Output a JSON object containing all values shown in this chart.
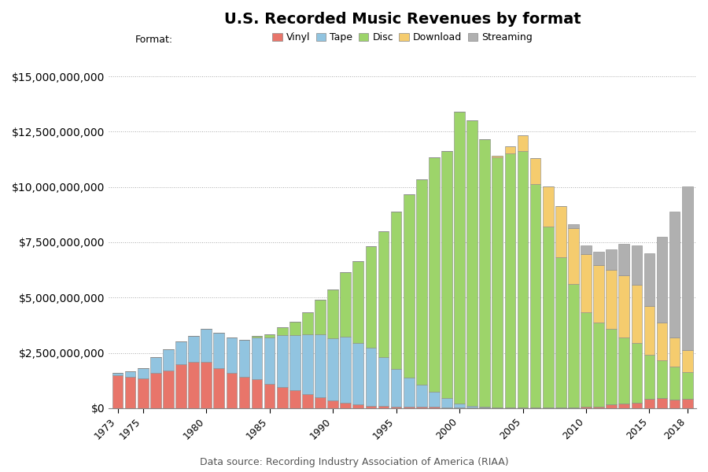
{
  "title": "U.S. Recorded Music Revenues by format",
  "subtitle": "Data source: Recording Industry Association of America (RIAA)",
  "legend_label": "Format:",
  "formats": [
    "Vinyl",
    "Tape",
    "Disc",
    "Download",
    "Streaming"
  ],
  "colors": [
    "#e8756a",
    "#91c4e0",
    "#9dd46a",
    "#f5cc6e",
    "#b0b0b0"
  ],
  "years": [
    1973,
    1974,
    1975,
    1976,
    1977,
    1978,
    1979,
    1980,
    1981,
    1982,
    1983,
    1984,
    1985,
    1986,
    1987,
    1988,
    1989,
    1990,
    1991,
    1992,
    1993,
    1994,
    1995,
    1996,
    1997,
    1998,
    1999,
    2000,
    2001,
    2002,
    2003,
    2004,
    2005,
    2006,
    2007,
    2008,
    2009,
    2010,
    2011,
    2012,
    2013,
    2014,
    2015,
    2016,
    2017,
    2018
  ],
  "vinyl": [
    1500000000,
    1400000000,
    1350000000,
    1600000000,
    1700000000,
    2000000000,
    2100000000,
    2100000000,
    1800000000,
    1600000000,
    1400000000,
    1300000000,
    1100000000,
    950000000,
    800000000,
    650000000,
    500000000,
    350000000,
    230000000,
    155000000,
    115000000,
    95000000,
    80000000,
    70000000,
    60000000,
    50000000,
    40000000,
    30000000,
    25000000,
    20000000,
    18000000,
    15000000,
    15000000,
    15000000,
    15000000,
    18000000,
    25000000,
    50000000,
    70000000,
    170000000,
    210000000,
    260000000,
    415000000,
    460000000,
    395000000,
    420000000
  ],
  "tape": [
    80000000,
    250000000,
    450000000,
    700000000,
    950000000,
    1000000000,
    1150000000,
    1500000000,
    1600000000,
    1600000000,
    1700000000,
    1900000000,
    2100000000,
    2350000000,
    2500000000,
    2700000000,
    2850000000,
    2800000000,
    3000000000,
    2800000000,
    2600000000,
    2200000000,
    1700000000,
    1300000000,
    1000000000,
    700000000,
    400000000,
    180000000,
    90000000,
    45000000,
    22000000,
    10000000,
    5000000,
    3000000,
    2000000,
    1000000,
    500000,
    200000,
    100000,
    100000,
    100000,
    100000,
    100000,
    100000,
    100000,
    100000
  ],
  "disc": [
    0,
    0,
    0,
    0,
    0,
    0,
    0,
    0,
    0,
    0,
    0,
    50000000,
    150000000,
    350000000,
    600000000,
    1000000000,
    1550000000,
    2200000000,
    2900000000,
    3700000000,
    4600000000,
    5700000000,
    7100000000,
    8300000000,
    9300000000,
    10600000000,
    11200000000,
    13200000000,
    12900000000,
    12100000000,
    11300000000,
    11500000000,
    11600000000,
    10100000000,
    8200000000,
    6800000000,
    5600000000,
    4300000000,
    3800000000,
    3400000000,
    3000000000,
    2700000000,
    2000000000,
    1700000000,
    1500000000,
    1200000000
  ],
  "download": [
    0,
    0,
    0,
    0,
    0,
    0,
    0,
    0,
    0,
    0,
    0,
    0,
    0,
    0,
    0,
    0,
    0,
    0,
    0,
    0,
    0,
    0,
    0,
    0,
    0,
    0,
    0,
    0,
    0,
    0,
    60000000,
    300000000,
    700000000,
    1200000000,
    1800000000,
    2300000000,
    2500000000,
    2600000000,
    2600000000,
    2700000000,
    2800000000,
    2600000000,
    2200000000,
    1700000000,
    1300000000,
    1000000000
  ],
  "streaming": [
    0,
    0,
    0,
    0,
    0,
    0,
    0,
    0,
    0,
    0,
    0,
    0,
    0,
    0,
    0,
    0,
    0,
    0,
    0,
    0,
    0,
    0,
    0,
    0,
    0,
    0,
    0,
    0,
    0,
    0,
    0,
    0,
    0,
    0,
    0,
    0,
    200000000,
    400000000,
    600000000,
    900000000,
    1400000000,
    1800000000,
    2400000000,
    3900000000,
    5700000000,
    7400000000
  ],
  "ylim": [
    0,
    16000000000
  ],
  "ytick_values": [
    0,
    2500000000,
    5000000000,
    7500000000,
    10000000000,
    12500000000,
    15000000000
  ],
  "x_tick_years": [
    1973,
    1975,
    1980,
    1985,
    1990,
    1995,
    2000,
    2005,
    2010,
    2015,
    2018
  ],
  "xlim": [
    1972.3,
    2018.7
  ],
  "background_color": "#ffffff",
  "grid_color": "#aaaaaa",
  "bar_edge_color": "#888888",
  "bar_width": 0.85
}
